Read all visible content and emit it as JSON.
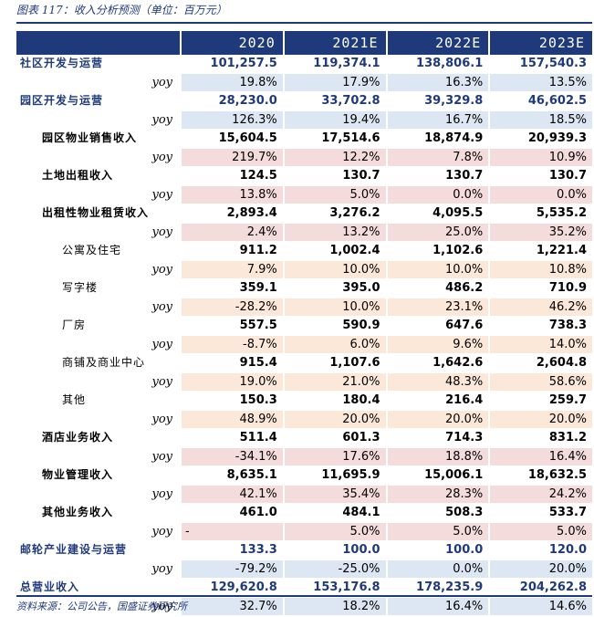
{
  "caption": "图表 117：收入分析预测（单位：百万元）",
  "source": "资料来源：公司公告，国盛证券研究所",
  "columns": [
    "2020",
    "2021E",
    "2022E",
    "2023E"
  ],
  "colors": {
    "navy": "#1f3a7a",
    "yoy_blue": "#dde6f3",
    "yoy_pink": "#f4dcdc",
    "yoy_peach": "#fbe8d8"
  },
  "rows": [
    {
      "label": "社区开发与运营",
      "level": "main",
      "values": [
        "101,257.5",
        "119,374.1",
        "138,806.1",
        "157,540.3"
      ],
      "yoy": [
        "19.8%",
        "17.9%",
        "16.3%",
        "13.5%"
      ],
      "yoy_style": "blue"
    },
    {
      "label": "园区开发与运营",
      "level": "main",
      "values": [
        "28,230.0",
        "33,702.8",
        "39,329.8",
        "46,602.5"
      ],
      "yoy": [
        "126.3%",
        "19.4%",
        "16.7%",
        "18.5%"
      ],
      "yoy_style": "blue"
    },
    {
      "label": "园区物业销售收入",
      "level": "sub",
      "values": [
        "15,604.5",
        "17,514.6",
        "18,874.9",
        "20,939.3"
      ],
      "yoy": [
        "219.7%",
        "12.2%",
        "7.8%",
        "10.9%"
      ],
      "yoy_style": "pink"
    },
    {
      "label": "土地出租收入",
      "level": "sub",
      "values": [
        "124.5",
        "130.7",
        "130.7",
        "130.7"
      ],
      "yoy": [
        "13.8%",
        "5.0%",
        "0.0%",
        "0.0%"
      ],
      "yoy_style": "pink"
    },
    {
      "label": "出租性物业租赁收入",
      "level": "sub",
      "values": [
        "2,893.4",
        "3,276.2",
        "4,095.5",
        "5,535.2"
      ],
      "yoy": [
        "2.4%",
        "13.2%",
        "25.0%",
        "35.2%"
      ],
      "yoy_style": "pink"
    },
    {
      "label": "公寓及住宅",
      "level": "sub2",
      "values": [
        "911.2",
        "1,002.4",
        "1,102.6",
        "1,221.4"
      ],
      "yoy": [
        "7.9%",
        "10.0%",
        "10.0%",
        "10.8%"
      ],
      "yoy_style": "peach"
    },
    {
      "label": "写字楼",
      "level": "sub2",
      "values": [
        "359.1",
        "395.0",
        "486.2",
        "710.9"
      ],
      "yoy": [
        "-28.2%",
        "10.0%",
        "23.1%",
        "46.2%"
      ],
      "yoy_style": "peach"
    },
    {
      "label": "厂房",
      "level": "sub2",
      "values": [
        "557.5",
        "590.9",
        "647.6",
        "738.3"
      ],
      "yoy": [
        "-8.7%",
        "6.0%",
        "9.6%",
        "14.0%"
      ],
      "yoy_style": "peach"
    },
    {
      "label": "商铺及商业中心",
      "level": "sub2",
      "values": [
        "915.4",
        "1,107.6",
        "1,642.6",
        "2,604.8"
      ],
      "yoy": [
        "19.0%",
        "21.0%",
        "48.3%",
        "58.6%"
      ],
      "yoy_style": "peach"
    },
    {
      "label": "其他",
      "level": "sub2",
      "values": [
        "150.3",
        "180.4",
        "216.4",
        "259.7"
      ],
      "yoy": [
        "48.9%",
        "20.0%",
        "20.0%",
        "20.0%"
      ],
      "yoy_style": "peach"
    },
    {
      "label": "酒店业务收入",
      "level": "sub",
      "values": [
        "511.4",
        "601.3",
        "714.3",
        "831.2"
      ],
      "yoy": [
        "-34.1%",
        "17.6%",
        "18.8%",
        "16.4%"
      ],
      "yoy_style": "pink"
    },
    {
      "label": "物业管理收入",
      "level": "sub",
      "values": [
        "8,635.1",
        "11,695.9",
        "15,006.1",
        "18,632.5"
      ],
      "yoy": [
        "42.1%",
        "35.4%",
        "28.3%",
        "24.2%"
      ],
      "yoy_style": "pink"
    },
    {
      "label": "其他业务收入",
      "level": "sub",
      "values": [
        "461.0",
        "484.1",
        "508.3",
        "533.7"
      ],
      "yoy": [
        "-",
        "5.0%",
        "5.0%",
        "5.0%"
      ],
      "yoy_style": "pink"
    },
    {
      "label": "邮轮产业建设与运营",
      "level": "main",
      "values": [
        "133.3",
        "100.0",
        "100.0",
        "120.0"
      ],
      "yoy": [
        "-79.2%",
        "-25.0%",
        "0.0%",
        "20.0%"
      ],
      "yoy_style": "blue"
    },
    {
      "label": "总营业收入",
      "level": "main",
      "values": [
        "129,620.8",
        "153,176.8",
        "178,235.9",
        "204,262.8"
      ],
      "yoy": [
        "32.7%",
        "18.2%",
        "16.4%",
        "14.6%"
      ],
      "yoy_style": "blue"
    }
  ],
  "yoy_label": "yoy"
}
